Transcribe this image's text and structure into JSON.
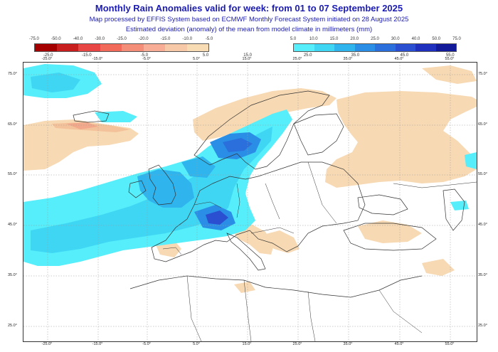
{
  "title": "Monthly Rain Anomalies valid for week: from 01 to 07 September 2025",
  "subtitle_line1": "Map processed by EFFIS System based on ECMWF Monthly Forecast System initiated on 28 August 2025",
  "subtitle_line2": "Estimated deviation (anomaly) of the mean from model climate in millimeters (mm)",
  "legend_negative": {
    "top_labels": [
      "-75.0",
      "-50.0",
      "-40.0",
      "-30.0",
      "-25.0",
      "-20.0",
      "-15.0",
      "-10.0",
      "-5.0"
    ],
    "bottom_labels": [
      "-25.0",
      "-15.0",
      "-5.0",
      "5.0",
      "15.0"
    ],
    "colors": [
      "#a50000",
      "#c81e1e",
      "#e84545",
      "#f26a5a",
      "#f58e78",
      "#f8ad96",
      "#f8c9a8",
      "#f7dcb4"
    ]
  },
  "legend_positive": {
    "top_labels": [
      "5.0",
      "10.0",
      "15.0",
      "20.0",
      "25.0",
      "30.0",
      "40.0",
      "50.0",
      "75.0"
    ],
    "bottom_labels": [
      "25.0",
      "35.0",
      "45.0",
      "55.0"
    ],
    "colors": [
      "#55eefa",
      "#3fd6f4",
      "#2fb4ee",
      "#2b8ee6",
      "#2a6fdc",
      "#2a4fd0",
      "#1f2fbe",
      "#121a9a"
    ]
  },
  "axes": {
    "x_labels": [
      "-25.0°",
      "-15.0°",
      "-5.0°",
      "5.0°",
      "15.0°",
      "25.0°",
      "35.0°",
      "45.0°",
      "55.0°"
    ],
    "y_labels": [
      "75.0°",
      "65.0°",
      "55.0°",
      "45.0°",
      "35.0°",
      "25.0°"
    ]
  },
  "colors": {
    "title_text": "#1b1bb0",
    "land_outline": "#333333",
    "graticule": "#9a9a9a"
  }
}
